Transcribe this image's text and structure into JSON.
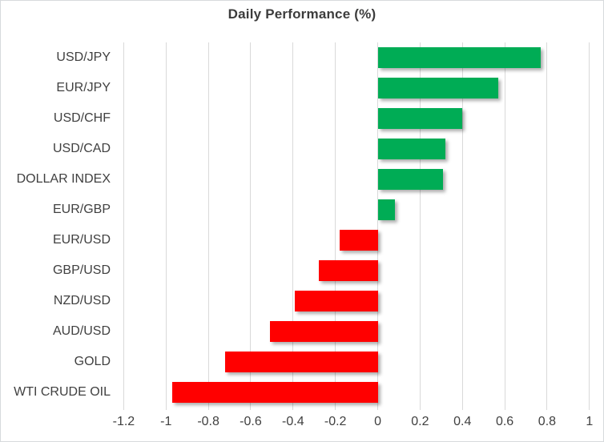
{
  "chart": {
    "title": "Daily Performance (%)"
  },
  "chart_data": {
    "type": "bar",
    "orientation": "horizontal",
    "title": "Daily Performance (%)",
    "categories": [
      "USD/JPY",
      "EUR/JPY",
      "USD/CHF",
      "USD/CAD",
      "DOLLAR INDEX",
      "EUR/GBP",
      "EUR/USD",
      "GBP/USD",
      "NZD/USD",
      "AUD/USD",
      "GOLD",
      "WTI CRUDE OIL"
    ],
    "values": [
      0.77,
      0.57,
      0.4,
      0.32,
      0.31,
      0.08,
      -0.18,
      -0.28,
      -0.39,
      -0.51,
      -0.72,
      -0.97
    ],
    "x_tick_values": [
      -1.2,
      -1,
      -0.8,
      -0.6,
      -0.4,
      -0.2,
      0,
      0.2,
      0.4,
      0.6,
      0.8,
      1
    ],
    "x_tick_labels": [
      "-1.2",
      "-1",
      "-0.8",
      "-0.6",
      "-0.4",
      "-0.2",
      "0",
      "0.2",
      "0.4",
      "0.6",
      "0.8",
      "1"
    ],
    "xlim": [
      -1.3,
      1.05
    ],
    "xlabel": "",
    "ylabel": "",
    "grid": true,
    "legend": false,
    "positive_color": "#00AC55",
    "negative_color": "#FF0000",
    "gridline_color": "#d9d9d9",
    "label_color": "#404040",
    "title_color": "#3c3c3c"
  }
}
